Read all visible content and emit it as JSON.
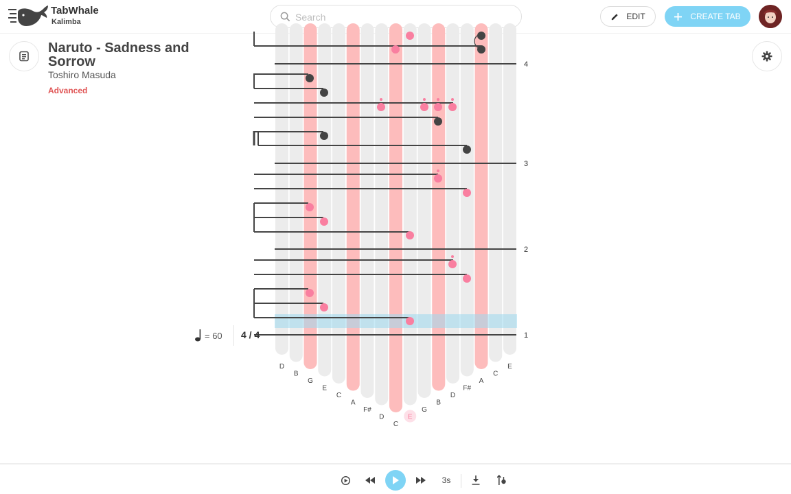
{
  "app": {
    "name": "TabWhale",
    "subtitle": "Kalimba"
  },
  "search": {
    "placeholder": "Search",
    "value": ""
  },
  "header": {
    "edit_label": "EDIT",
    "create_label": "CREATE TAB"
  },
  "song": {
    "title": "Naruto - Sadness and Sorrow",
    "artist": "Toshiro Masuda",
    "level": "Advanced"
  },
  "score": {
    "tempo": "= 60",
    "time_signature": "4 / 4",
    "measure_numbers": [
      "4",
      "3",
      "2",
      "1"
    ],
    "tines": [
      {
        "note": "D",
        "highlight": false
      },
      {
        "note": "B",
        "highlight": false
      },
      {
        "note": "G",
        "highlight": true
      },
      {
        "note": "E",
        "highlight": false
      },
      {
        "note": "C",
        "highlight": false
      },
      {
        "note": "A",
        "highlight": true
      },
      {
        "note": "F#",
        "highlight": false
      },
      {
        "note": "D",
        "highlight": false
      },
      {
        "note": "C",
        "highlight": true
      },
      {
        "note": "E",
        "highlight": false,
        "active": true
      },
      {
        "note": "G",
        "highlight": false
      },
      {
        "note": "B",
        "highlight": true
      },
      {
        "note": "D",
        "highlight": false
      },
      {
        "note": "F#",
        "highlight": false
      },
      {
        "note": "A",
        "highlight": true
      },
      {
        "note": "C",
        "highlight": false
      },
      {
        "note": "E",
        "highlight": false
      }
    ]
  },
  "player": {
    "speed_label": "3s"
  },
  "colors": {
    "accent": "#7fd4f5",
    "pink": "#f97fa0",
    "tine_highlight": "#fdbcbc",
    "tine": "#ececec",
    "level": "#e05555"
  },
  "icons": {
    "search": "search-icon",
    "edit": "pencil-icon",
    "create": "plus-icon",
    "info": "notes-icon",
    "settings": "gear-icon",
    "metronome": "metronome-icon",
    "rewind": "rewind-icon",
    "play": "play-icon",
    "forward": "fast-forward-icon",
    "download": "download-icon",
    "tuning": "tuning-icon"
  }
}
